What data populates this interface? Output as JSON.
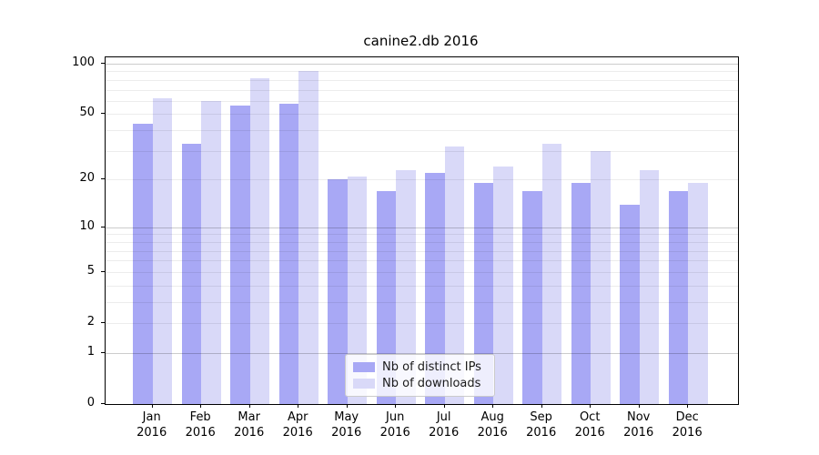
{
  "chart_data": {
    "type": "bar",
    "title": "canine2.db 2016",
    "y_scale": "log1p",
    "ylim": [
      0,
      110
    ],
    "grid": "on",
    "y_ticks_labeled": [
      0,
      1,
      2,
      5,
      10,
      20,
      50,
      100
    ],
    "y_major_gridlines": [
      1,
      10,
      100
    ],
    "y_minor_gridlines": [
      2,
      3,
      4,
      5,
      6,
      7,
      8,
      9,
      20,
      30,
      40,
      50,
      60,
      70,
      80,
      90
    ],
    "categories": [
      "Jan 2016",
      "Feb 2016",
      "Mar 2016",
      "Apr 2016",
      "May 2016",
      "Jun 2016",
      "Jul 2016",
      "Aug 2016",
      "Sep 2016",
      "Oct 2016",
      "Nov 2016",
      "Dec 2016"
    ],
    "series": [
      {
        "name": "Nb of distinct IPs",
        "color": "#a8a8f5",
        "values": [
          44,
          33,
          56,
          58,
          20,
          17,
          22,
          19,
          17,
          19,
          14,
          17
        ]
      },
      {
        "name": "Nb of downloads",
        "color": "#d9d9f8",
        "values": [
          62,
          60,
          82,
          90,
          21,
          23,
          32,
          24,
          33,
          30,
          23,
          19
        ]
      }
    ],
    "legend_position": "lower center"
  }
}
